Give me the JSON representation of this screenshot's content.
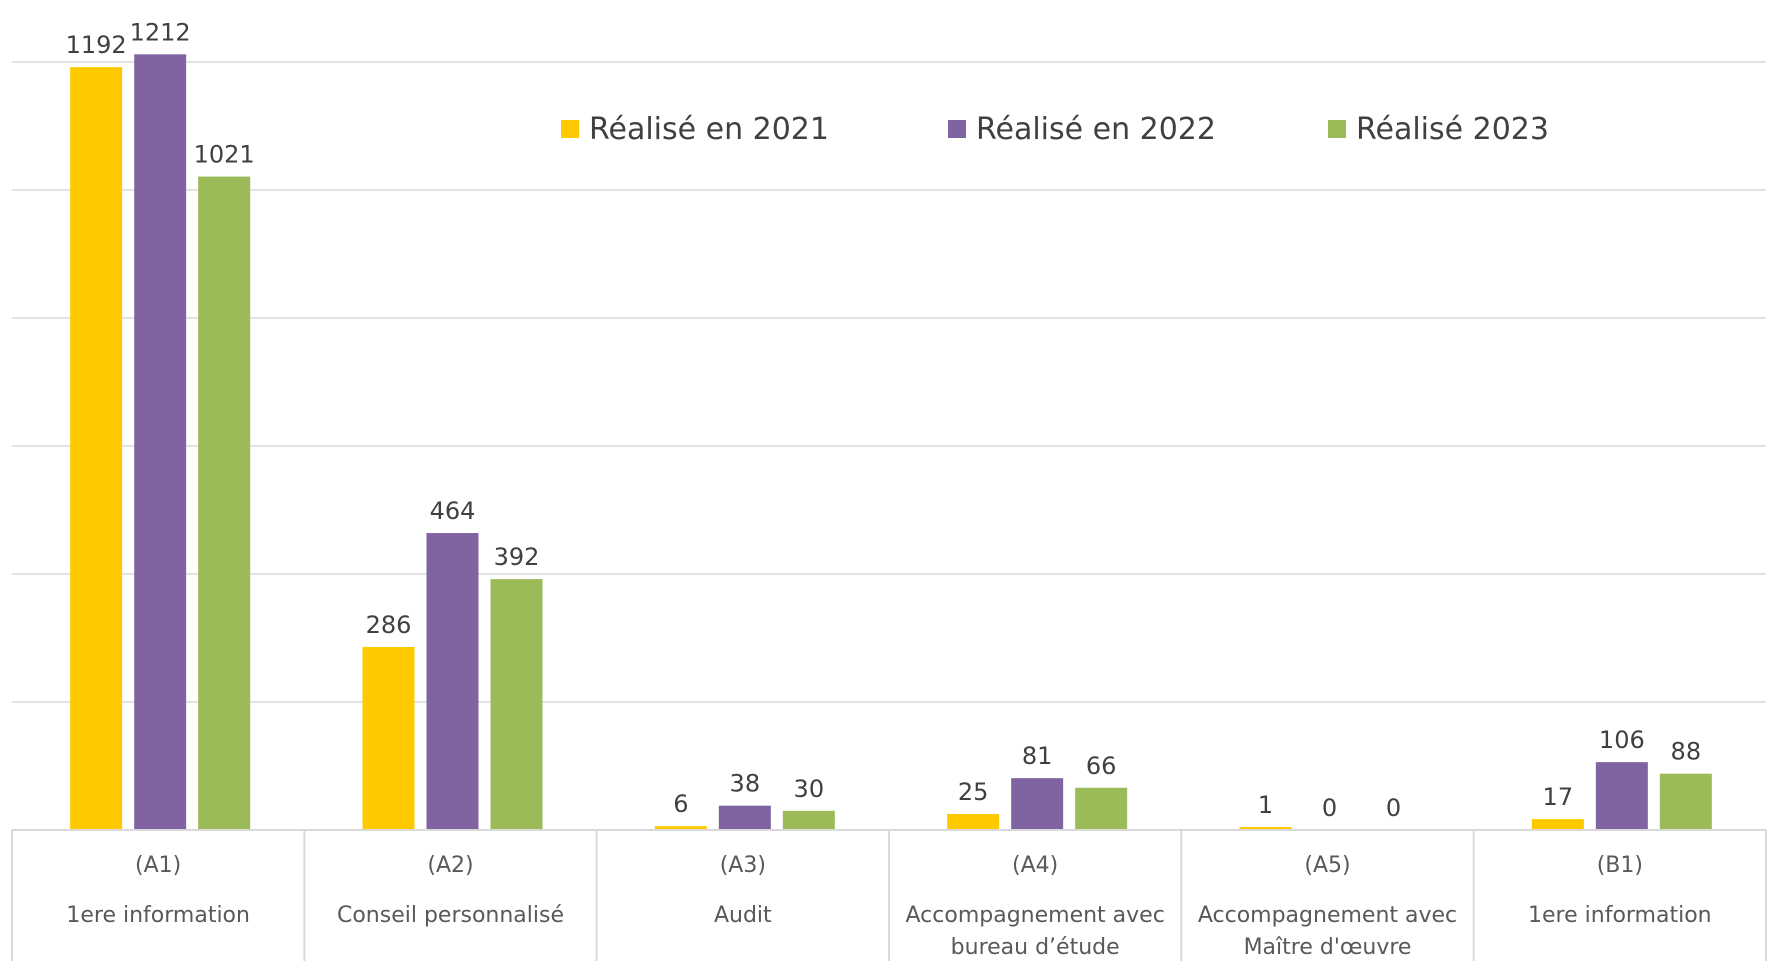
{
  "chart_data": {
    "type": "bar",
    "title": "",
    "xlabel": "",
    "ylabel": "",
    "ylim": [
      0,
      1200
    ],
    "grid": true,
    "legend_placement": "top-center",
    "categories": [
      {
        "code": "(A1)",
        "label_lines": [
          "1ere information"
        ]
      },
      {
        "code": "(A2)",
        "label_lines": [
          "Conseil personnalisé"
        ]
      },
      {
        "code": "(A3)",
        "label_lines": [
          "Audit"
        ]
      },
      {
        "code": "(A4)",
        "label_lines": [
          "Accompagnement avec",
          "bureau d’étude"
        ]
      },
      {
        "code": "(A5)",
        "label_lines": [
          "Accompagnement avec",
          "Maître d'œuvre"
        ]
      },
      {
        "code": "(B1)",
        "label_lines": [
          "1ere information"
        ]
      }
    ],
    "series": [
      {
        "name": "Réalisé en 2021",
        "color": "#FFC900",
        "values": [
          1192,
          286,
          6,
          25,
          1,
          17
        ]
      },
      {
        "name": "Réalisé en 2022",
        "color": "#8064A2",
        "values": [
          1212,
          464,
          38,
          81,
          0,
          106
        ]
      },
      {
        "name": "Réalisé 2023",
        "color": "#9BBB59",
        "values": [
          1021,
          392,
          30,
          66,
          0,
          88
        ]
      }
    ]
  }
}
